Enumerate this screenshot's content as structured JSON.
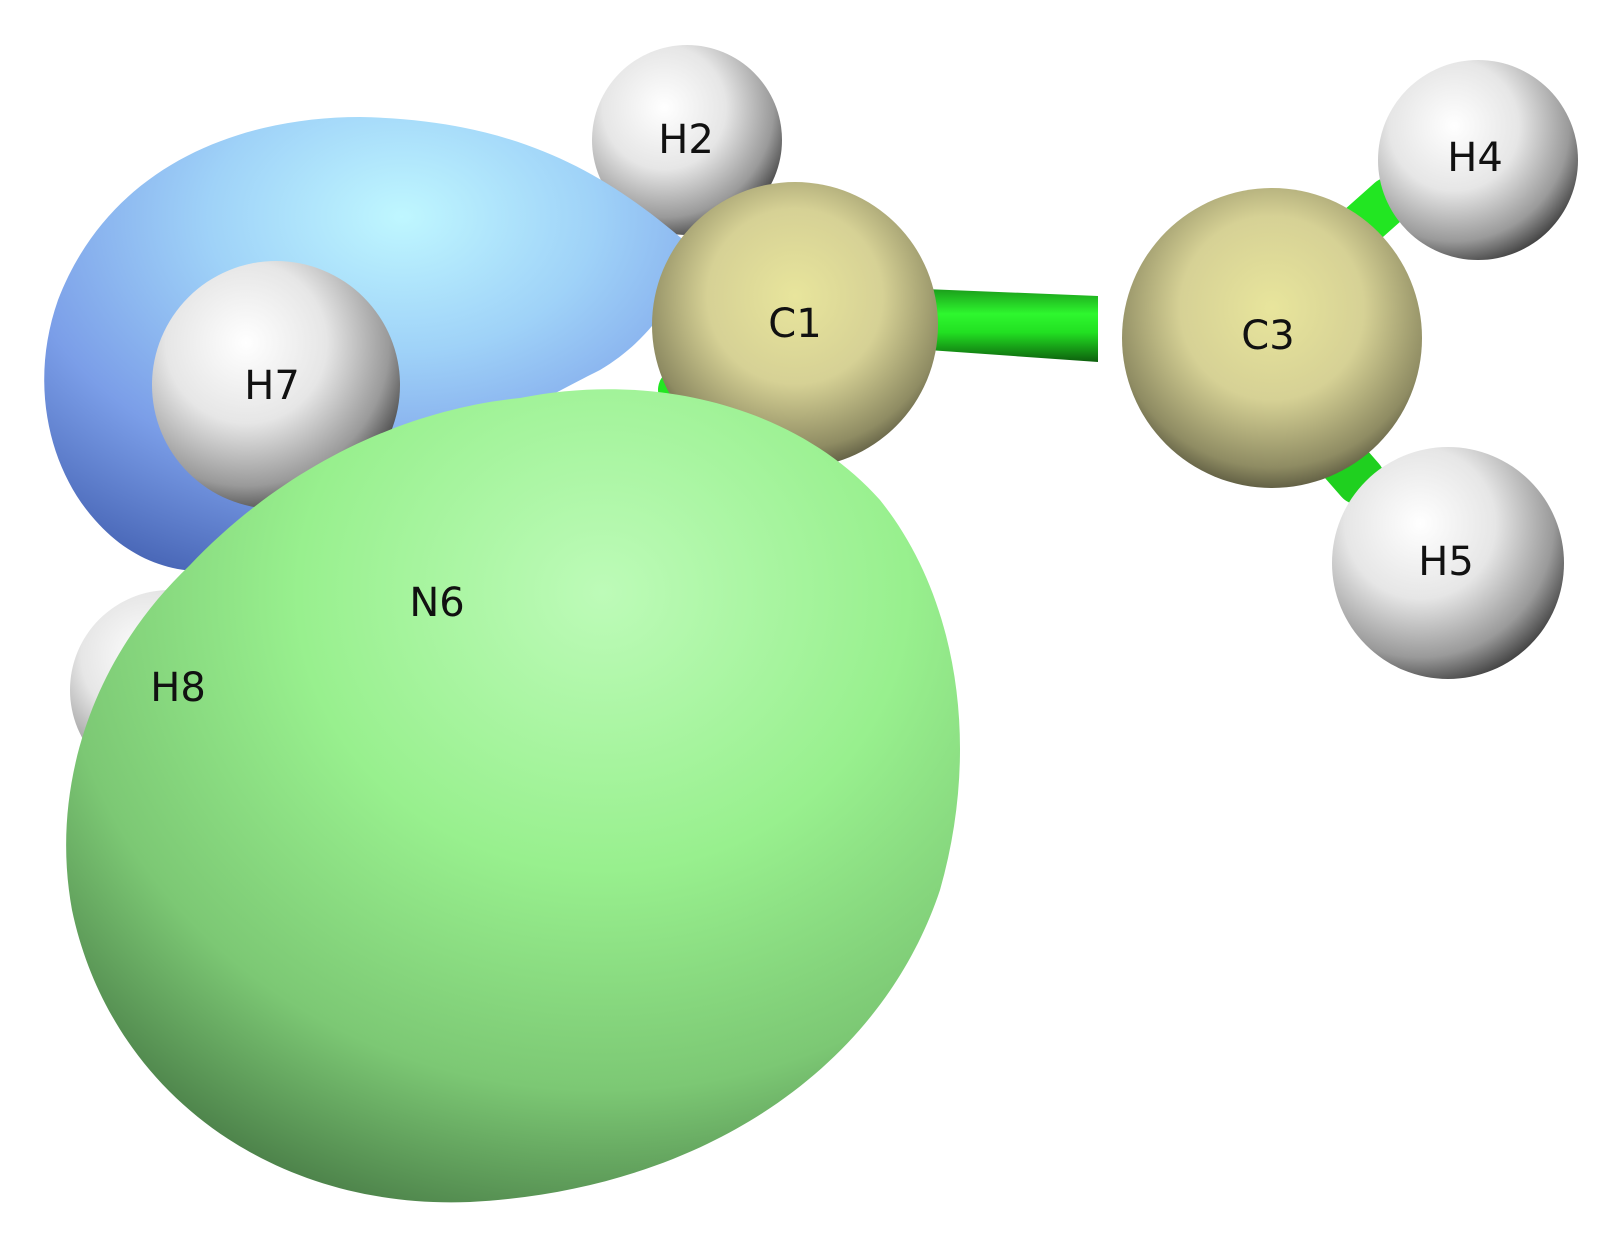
{
  "molecule": {
    "atoms": [
      {
        "id": "C1",
        "label": "C1",
        "element": "C"
      },
      {
        "id": "H2",
        "label": "H2",
        "element": "H"
      },
      {
        "id": "C3",
        "label": "C3",
        "element": "C"
      },
      {
        "id": "H4",
        "label": "H4",
        "element": "H"
      },
      {
        "id": "H5",
        "label": "H5",
        "element": "H"
      },
      {
        "id": "N6",
        "label": "N6",
        "element": "N"
      },
      {
        "id": "H7",
        "label": "H7",
        "element": "H"
      },
      {
        "id": "H8",
        "label": "H8",
        "element": "H"
      }
    ],
    "bonds": [
      [
        "C1",
        "C3"
      ],
      [
        "C1",
        "H2"
      ],
      [
        "C1",
        "N6"
      ],
      [
        "C3",
        "H4"
      ],
      [
        "C3",
        "H5"
      ],
      [
        "N6",
        "H7"
      ],
      [
        "N6",
        "H8"
      ]
    ],
    "orbital_lobes": [
      {
        "id": "negative-lobe",
        "color": "#8fb0f0"
      },
      {
        "id": "positive-lobe",
        "color": "#98f090"
      }
    ]
  },
  "colors": {
    "background": "#ffffff",
    "bond": "#22ee22",
    "carbon": "#d8d49a",
    "hydrogen": "#f0f0f0",
    "label": "#111111"
  }
}
